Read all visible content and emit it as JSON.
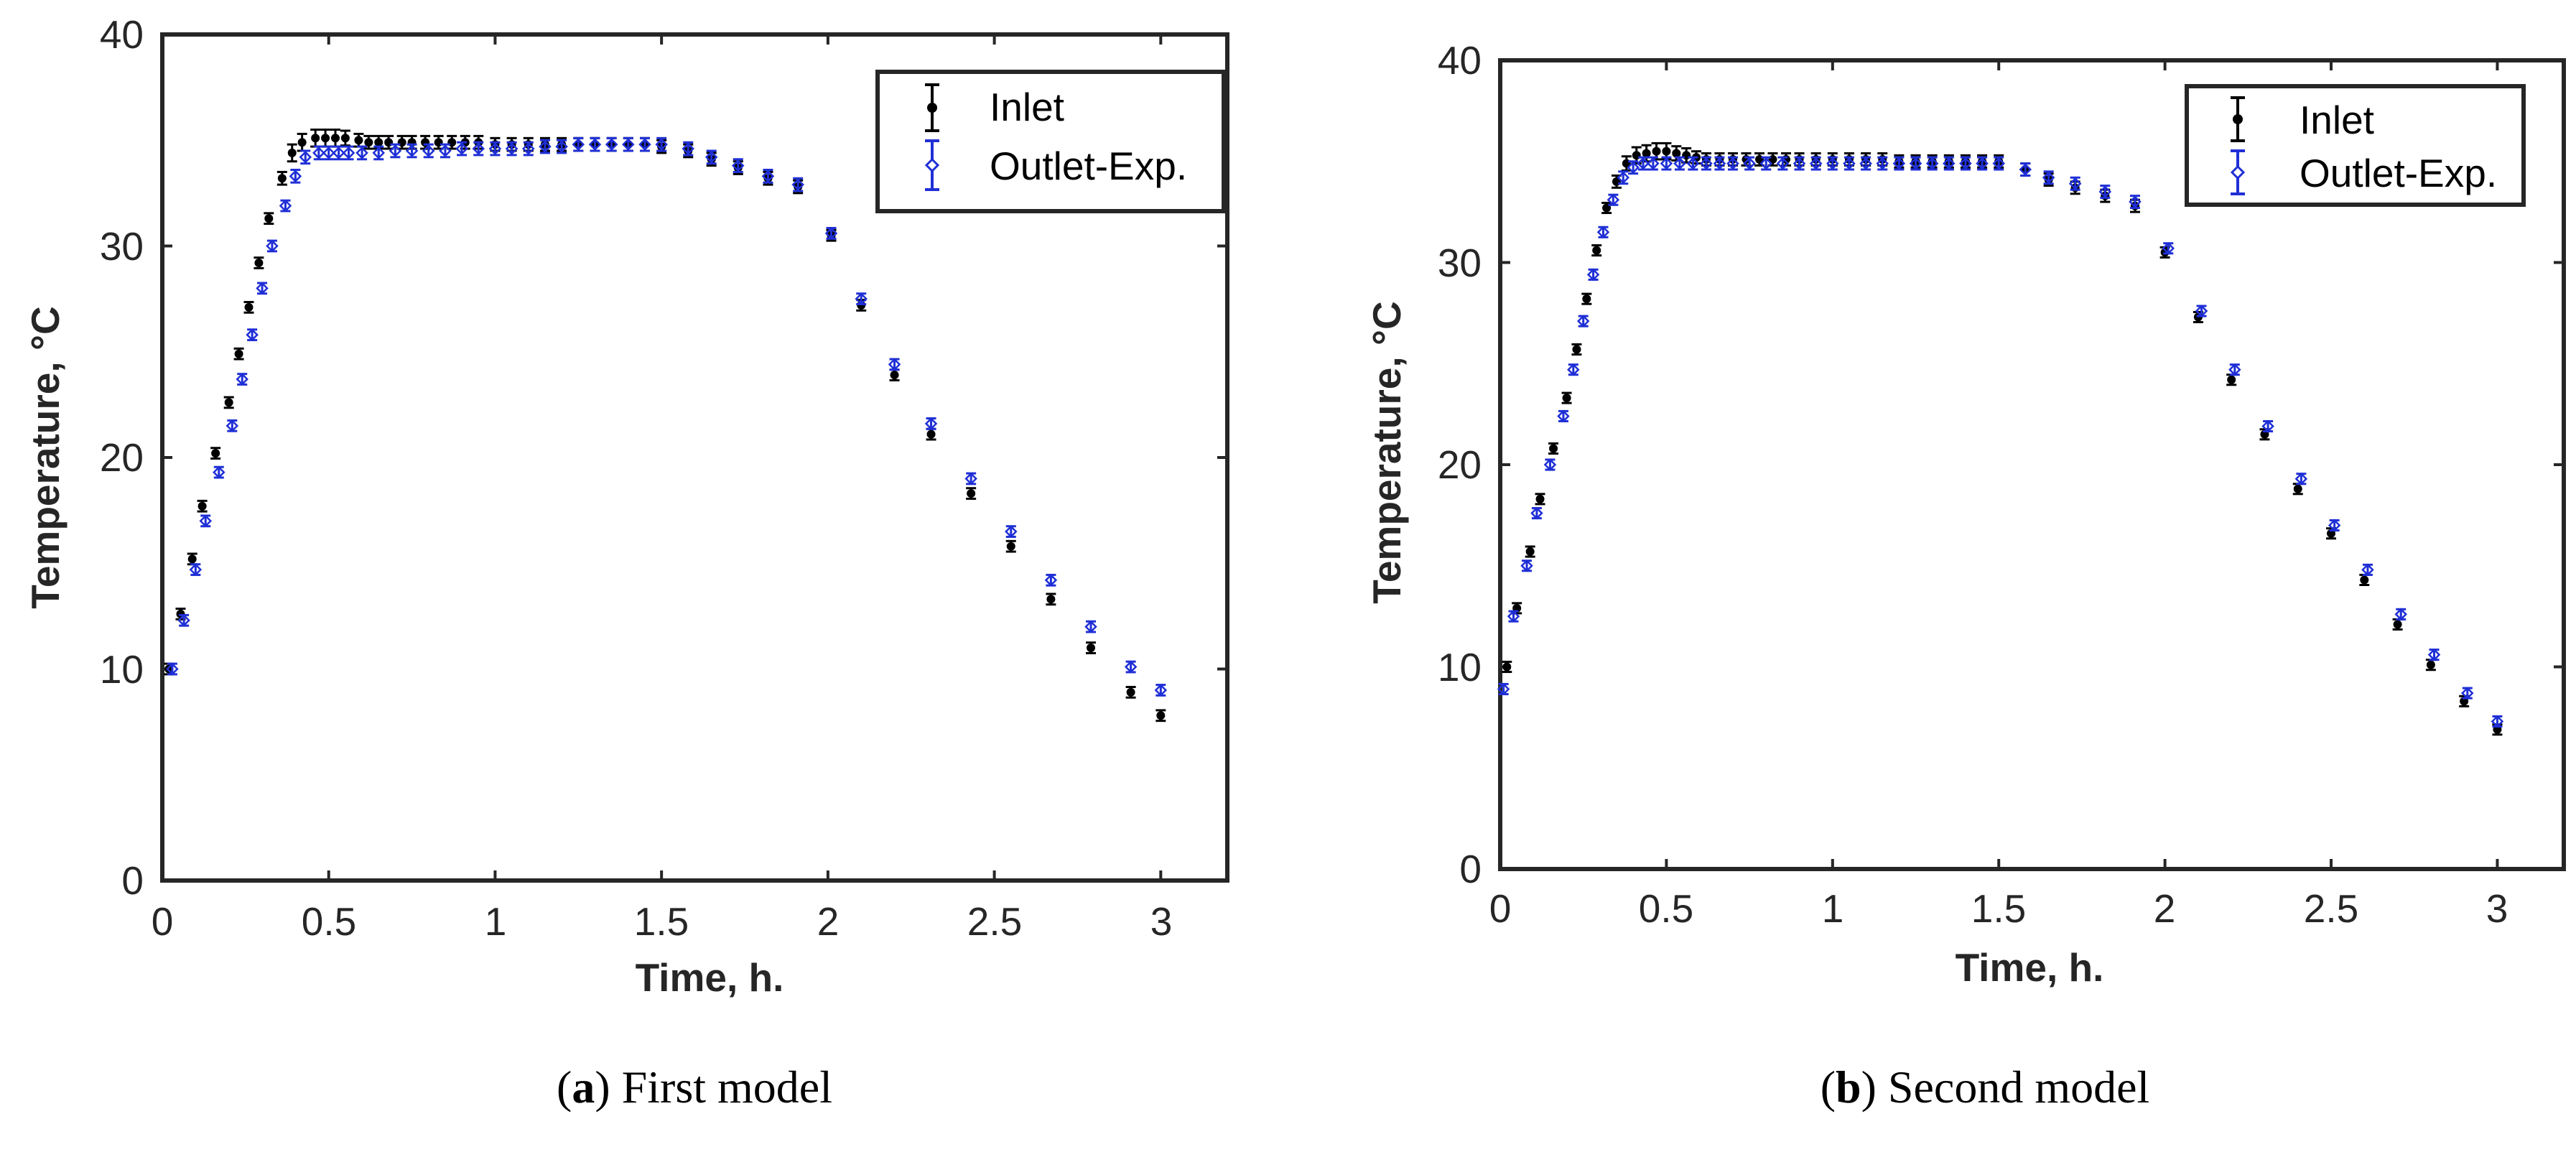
{
  "chart_data": [
    {
      "type": "scatter",
      "caption_letter": "a",
      "caption_text": ") First model",
      "caption_open": "(",
      "xlabel": "Time, h.",
      "ylabel": "Temperature, °C",
      "xlim": [
        0,
        3.2
      ],
      "ylim": [
        0,
        40
      ],
      "xticks": [
        0,
        0.5,
        1,
        1.5,
        2,
        2.5,
        3
      ],
      "xtick_labels": [
        "0",
        "0.5",
        "1",
        "1.5",
        "2",
        "2.5",
        "3"
      ],
      "yticks": [
        0,
        10,
        20,
        30,
        40
      ],
      "ytick_labels": [
        "0",
        "10",
        "20",
        "30",
        "40"
      ],
      "legend_position": "top-right",
      "series": [
        {
          "name": "Inlet",
          "color": "#000000",
          "marker": "dot",
          "x": [
            0.02,
            0.055,
            0.09,
            0.12,
            0.16,
            0.2,
            0.23,
            0.26,
            0.29,
            0.32,
            0.36,
            0.39,
            0.42,
            0.46,
            0.49,
            0.52,
            0.55,
            0.59,
            0.62,
            0.65,
            0.68,
            0.72,
            0.75,
            0.79,
            0.83,
            0.87,
            0.91,
            0.95,
            1.0,
            1.05,
            1.1,
            1.15,
            1.2,
            1.25,
            1.3,
            1.35,
            1.4,
            1.45,
            1.5,
            1.58,
            1.65,
            1.73,
            1.82,
            1.91,
            2.01,
            2.1,
            2.2,
            2.31,
            2.43,
            2.55,
            2.67,
            2.79,
            2.91,
            3.0
          ],
          "y": [
            10.0,
            12.6,
            15.2,
            17.7,
            20.2,
            22.6,
            24.9,
            27.1,
            29.2,
            31.3,
            33.2,
            34.4,
            34.9,
            35.1,
            35.1,
            35.1,
            35.1,
            35.0,
            34.9,
            34.9,
            34.9,
            34.9,
            34.9,
            34.9,
            34.9,
            34.9,
            34.9,
            34.9,
            34.8,
            34.8,
            34.8,
            34.8,
            34.8,
            34.8,
            34.8,
            34.8,
            34.8,
            34.8,
            34.7,
            34.5,
            34.1,
            33.7,
            33.2,
            32.8,
            30.5,
            27.2,
            23.9,
            21.1,
            18.3,
            15.8,
            13.3,
            11.0,
            8.9,
            7.8
          ],
          "err": [
            0.25,
            0.25,
            0.25,
            0.25,
            0.25,
            0.25,
            0.25,
            0.25,
            0.25,
            0.25,
            0.3,
            0.4,
            0.4,
            0.4,
            0.4,
            0.4,
            0.35,
            0.3,
            0.3,
            0.3,
            0.3,
            0.3,
            0.3,
            0.3,
            0.3,
            0.3,
            0.3,
            0.3,
            0.3,
            0.3,
            0.3,
            0.3,
            0.3,
            0.3,
            0.3,
            0.3,
            0.3,
            0.3,
            0.3,
            0.3,
            0.3,
            0.3,
            0.3,
            0.3,
            0.25,
            0.25,
            0.25,
            0.25,
            0.25,
            0.25,
            0.25,
            0.25,
            0.25,
            0.25
          ]
        },
        {
          "name": "Outlet-Exp.",
          "color": "#1f2fd6",
          "marker": "diamond",
          "x": [
            0.03,
            0.065,
            0.1,
            0.13,
            0.17,
            0.21,
            0.24,
            0.27,
            0.3,
            0.33,
            0.37,
            0.4,
            0.43,
            0.47,
            0.5,
            0.53,
            0.56,
            0.6,
            0.65,
            0.7,
            0.75,
            0.8,
            0.85,
            0.9,
            0.95,
            1.0,
            1.05,
            1.1,
            1.15,
            1.2,
            1.25,
            1.3,
            1.35,
            1.4,
            1.45,
            1.5,
            1.58,
            1.65,
            1.73,
            1.82,
            1.91,
            2.01,
            2.1,
            2.2,
            2.31,
            2.43,
            2.55,
            2.67,
            2.79,
            2.91,
            3.0
          ],
          "y": [
            10.0,
            12.3,
            14.7,
            17.0,
            19.3,
            21.5,
            23.7,
            25.8,
            28.0,
            30.0,
            31.9,
            33.3,
            34.2,
            34.4,
            34.4,
            34.4,
            34.4,
            34.4,
            34.4,
            34.5,
            34.5,
            34.5,
            34.5,
            34.6,
            34.6,
            34.6,
            34.6,
            34.6,
            34.7,
            34.7,
            34.8,
            34.8,
            34.8,
            34.8,
            34.8,
            34.8,
            34.6,
            34.2,
            33.8,
            33.3,
            32.9,
            30.6,
            27.5,
            24.4,
            21.6,
            19.0,
            16.5,
            14.2,
            12.0,
            10.1,
            9.0
          ],
          "err": [
            0.25,
            0.25,
            0.25,
            0.25,
            0.25,
            0.25,
            0.25,
            0.25,
            0.25,
            0.25,
            0.25,
            0.3,
            0.3,
            0.3,
            0.3,
            0.3,
            0.3,
            0.3,
            0.3,
            0.3,
            0.3,
            0.3,
            0.3,
            0.3,
            0.3,
            0.3,
            0.3,
            0.3,
            0.3,
            0.3,
            0.3,
            0.3,
            0.3,
            0.3,
            0.3,
            0.3,
            0.3,
            0.3,
            0.3,
            0.3,
            0.3,
            0.25,
            0.25,
            0.25,
            0.25,
            0.25,
            0.25,
            0.25,
            0.25,
            0.25,
            0.25
          ]
        }
      ]
    },
    {
      "type": "scatter",
      "caption_letter": "b",
      "caption_text": ") Second model",
      "caption_open": "(",
      "xlabel": "Time, h.",
      "ylabel": "Temperature, °C",
      "xlim": [
        0,
        3.2
      ],
      "ylim": [
        0,
        40
      ],
      "xticks": [
        0,
        0.5,
        1,
        1.5,
        2,
        2.5,
        3
      ],
      "xtick_labels": [
        "0",
        "0.5",
        "1",
        "1.5",
        "2",
        "2.5",
        "3"
      ],
      "yticks": [
        0,
        10,
        20,
        30,
        40
      ],
      "ytick_labels": [
        "0",
        "10",
        "20",
        "30",
        "40"
      ],
      "legend_position": "top-right",
      "series": [
        {
          "name": "Inlet",
          "color": "#000000",
          "marker": "dot",
          "x": [
            0.02,
            0.05,
            0.09,
            0.12,
            0.16,
            0.2,
            0.23,
            0.26,
            0.29,
            0.32,
            0.35,
            0.38,
            0.41,
            0.44,
            0.47,
            0.5,
            0.53,
            0.56,
            0.59,
            0.62,
            0.66,
            0.7,
            0.74,
            0.78,
            0.82,
            0.86,
            0.9,
            0.95,
            1.0,
            1.05,
            1.1,
            1.15,
            1.2,
            1.25,
            1.3,
            1.35,
            1.4,
            1.45,
            1.5,
            1.58,
            1.65,
            1.73,
            1.82,
            1.91,
            2.0,
            2.1,
            2.2,
            2.3,
            2.4,
            2.5,
            2.6,
            2.7,
            2.8,
            2.9,
            3.0
          ],
          "y": [
            10.0,
            12.9,
            15.7,
            18.3,
            20.8,
            23.3,
            25.7,
            28.2,
            30.6,
            32.7,
            34.0,
            34.9,
            35.3,
            35.4,
            35.5,
            35.5,
            35.4,
            35.3,
            35.2,
            35.1,
            35.1,
            35.1,
            35.1,
            35.1,
            35.1,
            35.1,
            35.1,
            35.1,
            35.1,
            35.1,
            35.1,
            35.1,
            35.0,
            35.0,
            35.0,
            35.0,
            35.0,
            35.0,
            35.0,
            34.6,
            34.1,
            33.7,
            33.3,
            32.8,
            30.5,
            27.3,
            24.2,
            21.5,
            18.8,
            16.6,
            14.3,
            12.1,
            10.1,
            8.3,
            6.9
          ],
          "err": [
            0.25,
            0.25,
            0.25,
            0.25,
            0.25,
            0.25,
            0.25,
            0.25,
            0.25,
            0.25,
            0.3,
            0.35,
            0.4,
            0.4,
            0.4,
            0.4,
            0.35,
            0.35,
            0.3,
            0.3,
            0.3,
            0.3,
            0.3,
            0.3,
            0.3,
            0.3,
            0.3,
            0.3,
            0.3,
            0.3,
            0.3,
            0.3,
            0.3,
            0.3,
            0.3,
            0.3,
            0.3,
            0.3,
            0.3,
            0.3,
            0.3,
            0.3,
            0.3,
            0.3,
            0.25,
            0.25,
            0.25,
            0.25,
            0.25,
            0.25,
            0.25,
            0.25,
            0.25,
            0.25,
            0.25
          ]
        },
        {
          "name": "Outlet-Exp.",
          "color": "#1f2fd6",
          "marker": "diamond",
          "x": [
            0.01,
            0.04,
            0.08,
            0.11,
            0.15,
            0.19,
            0.22,
            0.25,
            0.28,
            0.31,
            0.34,
            0.37,
            0.4,
            0.43,
            0.46,
            0.5,
            0.54,
            0.58,
            0.62,
            0.66,
            0.7,
            0.75,
            0.8,
            0.85,
            0.9,
            0.95,
            1.0,
            1.05,
            1.1,
            1.15,
            1.2,
            1.25,
            1.3,
            1.35,
            1.4,
            1.45,
            1.5,
            1.58,
            1.65,
            1.73,
            1.82,
            1.91,
            2.01,
            2.11,
            2.21,
            2.31,
            2.41,
            2.51,
            2.61,
            2.71,
            2.81,
            2.91,
            3.0
          ],
          "y": [
            8.9,
            12.5,
            15.0,
            17.6,
            20.0,
            22.4,
            24.7,
            27.1,
            29.4,
            31.5,
            33.1,
            34.2,
            34.7,
            34.9,
            34.9,
            34.9,
            34.9,
            34.9,
            34.9,
            34.9,
            34.9,
            34.9,
            34.9,
            34.9,
            34.9,
            34.9,
            34.9,
            34.9,
            34.9,
            34.9,
            34.9,
            34.9,
            34.9,
            34.9,
            34.9,
            34.9,
            34.9,
            34.6,
            34.2,
            33.9,
            33.5,
            33.0,
            30.7,
            27.6,
            24.7,
            21.9,
            19.3,
            17.0,
            14.8,
            12.6,
            10.6,
            8.7,
            7.3
          ],
          "err": [
            0.25,
            0.25,
            0.25,
            0.25,
            0.25,
            0.25,
            0.25,
            0.25,
            0.25,
            0.25,
            0.25,
            0.3,
            0.3,
            0.3,
            0.3,
            0.3,
            0.3,
            0.3,
            0.3,
            0.3,
            0.3,
            0.3,
            0.3,
            0.3,
            0.3,
            0.3,
            0.3,
            0.3,
            0.3,
            0.3,
            0.3,
            0.3,
            0.3,
            0.3,
            0.3,
            0.3,
            0.3,
            0.3,
            0.3,
            0.3,
            0.3,
            0.3,
            0.25,
            0.25,
            0.25,
            0.25,
            0.25,
            0.25,
            0.25,
            0.25,
            0.25,
            0.25,
            0.25
          ]
        }
      ]
    }
  ]
}
